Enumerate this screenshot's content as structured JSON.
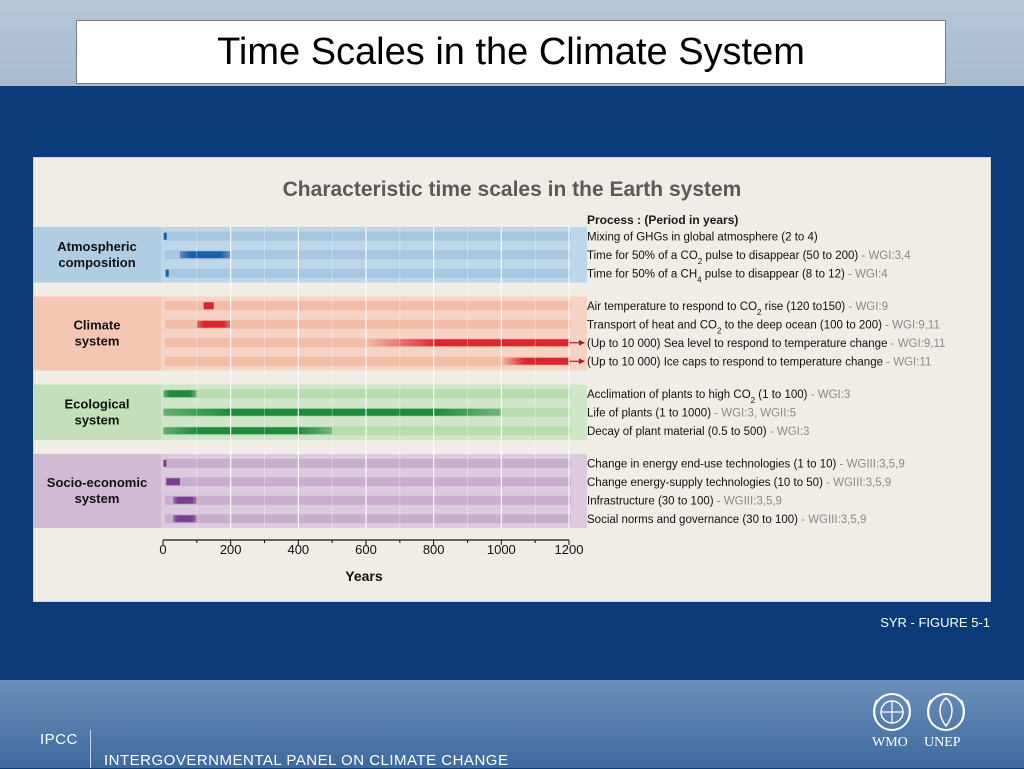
{
  "slide": {
    "title": "Time Scales in the Climate System",
    "credit": "SYR - FIGURE 5-1",
    "org_short": "IPCC",
    "org_full": "INTERGOVERNMENTAL PANEL ON CLIMATE CHANGE",
    "logos": [
      {
        "name": "wmo-logo",
        "label": "WMO"
      },
      {
        "name": "unep-logo",
        "label": "UNEP"
      }
    ],
    "colors": {
      "background": "#0b3a78",
      "figure_bg": "#efede6"
    }
  },
  "chart_data": {
    "type": "bar",
    "title": "Characteristic time scales in the Earth system",
    "process_header": "Process : (Period in years)",
    "xlabel": "Years",
    "xlim": [
      0,
      1200
    ],
    "xticks": [
      0,
      200,
      400,
      600,
      800,
      1000,
      1200
    ],
    "groups": [
      {
        "name": "Atmospheric composition",
        "label_lines": [
          "Atmospheric",
          "composition"
        ],
        "band_color": "#bdd6ea",
        "stripe_color": "#a8c6df",
        "bar_color": "#1a5ea8",
        "rows": [
          {
            "parts": [
              {
                "t": "Mixing of GHGs in global atmosphere (2 to 4)"
              }
            ],
            "range": [
              2,
              4
            ]
          },
          {
            "parts": [
              {
                "t": "Time for 50% of a CO"
              },
              {
                "t": "2",
                "sub": true
              },
              {
                "t": " pulse to disappear (50 to 200)"
              },
              {
                "t": " - WGI:3,4",
                "ref": true
              }
            ],
            "range": [
              50,
              200
            ]
          },
          {
            "parts": [
              {
                "t": "Time for 50% of a CH"
              },
              {
                "t": "4",
                "sub": true
              },
              {
                "t": " pulse to disappear (8 to 12)"
              },
              {
                "t": " - WGI:4",
                "ref": true
              }
            ],
            "range": [
              8,
              12
            ]
          }
        ]
      },
      {
        "name": "Climate system",
        "label_lines": [
          "Climate",
          "system"
        ],
        "band_color": "#f6d3c4",
        "stripe_color": "#f2bca6",
        "bar_color": "#d9272e",
        "rows": [
          {
            "parts": [
              {
                "t": "Air temperature to respond to CO"
              },
              {
                "t": "2",
                "sub": true
              },
              {
                "t": " rise (120 to150)"
              },
              {
                "t": " -  WGI:9",
                "ref": true
              }
            ],
            "range": [
              120,
              150
            ]
          },
          {
            "parts": [
              {
                "t": "Transport of heat and CO"
              },
              {
                "t": "2",
                "sub": true
              },
              {
                "t": " to the deep ocean (100 to 200)"
              },
              {
                "t": " - WGI:9,11",
                "ref": true
              }
            ],
            "range": [
              100,
              200
            ]
          },
          {
            "parts": [
              {
                "t": "(Up to 10 000)  Sea level to respond to temperature change"
              },
              {
                "t": " - WGI:9,11",
                "ref": true
              }
            ],
            "range": [
              600,
              10000
            ],
            "arrow": true
          },
          {
            "parts": [
              {
                "t": "(Up to 10 000)  Ice caps to respond to temperature change"
              },
              {
                "t": " - WGI:11",
                "ref": true
              }
            ],
            "range": [
              1000,
              10000
            ],
            "arrow": true
          }
        ]
      },
      {
        "name": "Ecological system",
        "label_lines": [
          "Ecological",
          "system"
        ],
        "band_color": "#cfe6c8",
        "stripe_color": "#b9dbb0",
        "bar_color": "#1f8a3c",
        "rows": [
          {
            "parts": [
              {
                "t": "Acclimation of plants to high CO"
              },
              {
                "t": "2",
                "sub": true
              },
              {
                "t": " (1 to 100)"
              },
              {
                "t": " - WGI:3",
                "ref": true
              }
            ],
            "range": [
              1,
              100
            ]
          },
          {
            "parts": [
              {
                "t": "Life of plants      (1 to 1000)"
              },
              {
                "t": " - WGI:3, WGII:5",
                "ref": true
              }
            ],
            "range": [
              1,
              1000
            ]
          },
          {
            "parts": [
              {
                "t": "Decay of plant material (0.5 to 500)"
              },
              {
                "t": " - WGI:3",
                "ref": true
              }
            ],
            "range": [
              0.5,
              500
            ]
          }
        ]
      },
      {
        "name": "Socio-economic system",
        "label_lines": [
          "Socio-economic",
          "system"
        ],
        "band_color": "#dccbde",
        "stripe_color": "#c8afcc",
        "bar_color": "#7b3f91",
        "rows": [
          {
            "parts": [
              {
                "t": "Change in energy end-use technologies (1 to 10)"
              },
              {
                "t": " - WGIII:3,5,9",
                "ref": true
              }
            ],
            "range": [
              1,
              10
            ]
          },
          {
            "parts": [
              {
                "t": "Change energy-supply technologies (10 to 50)"
              },
              {
                "t": " - WGIII:3,5,9",
                "ref": true
              }
            ],
            "range": [
              10,
              50
            ]
          },
          {
            "parts": [
              {
                "t": "Infrastructure (30 to 100)"
              },
              {
                "t": " - WGIII:3,5,9",
                "ref": true
              }
            ],
            "range": [
              30,
              100
            ]
          },
          {
            "parts": [
              {
                "t": "Social norms and governance (30 to 100)"
              },
              {
                "t": " - WGIII:3,5,9",
                "ref": true
              }
            ],
            "range": [
              30,
              100
            ]
          }
        ]
      }
    ]
  }
}
